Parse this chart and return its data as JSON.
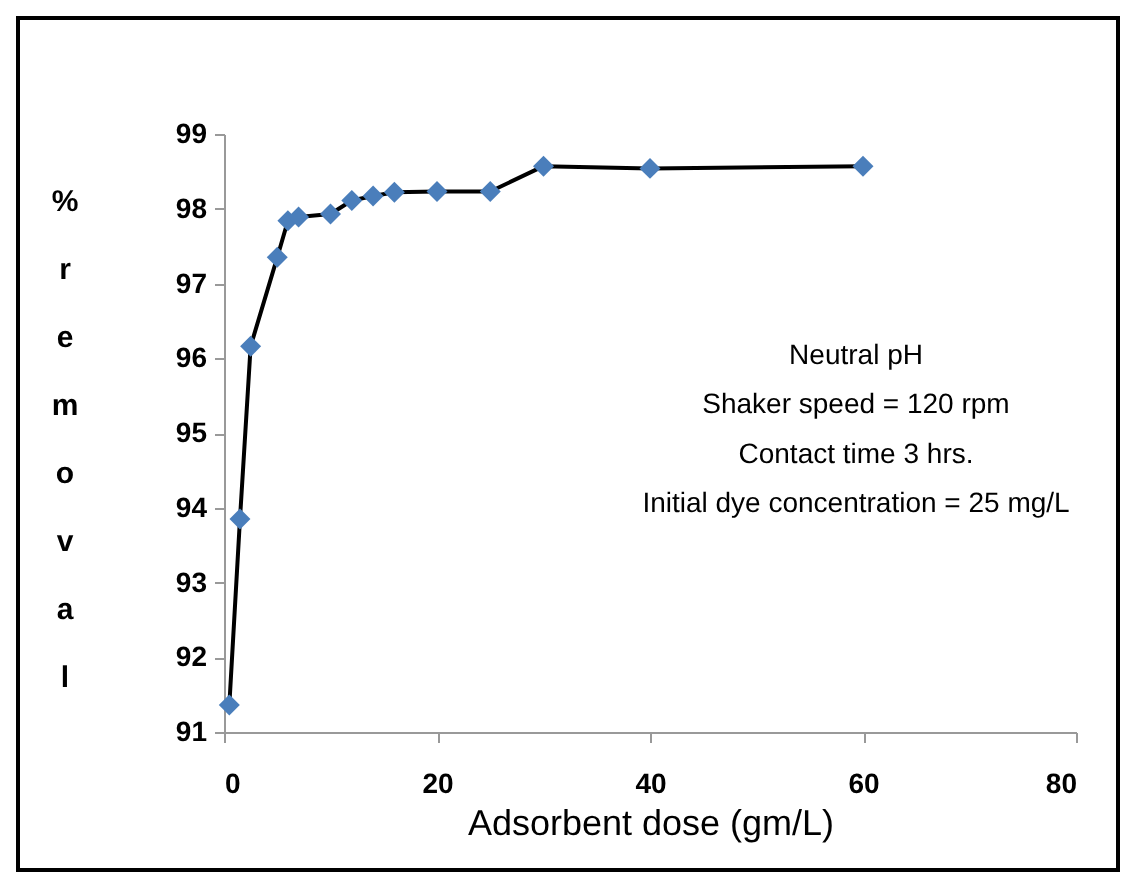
{
  "chart_data": {
    "type": "line",
    "xlabel": "Adsorbent dose (gm/L)",
    "ylabel": "% removal",
    "x": [
      0.5,
      1.5,
      2.5,
      5,
      6,
      7,
      10,
      12,
      14,
      16,
      20,
      25,
      30,
      40,
      60
    ],
    "series": [
      {
        "color": "#4a7ebb",
        "values": [
          91.36,
          93.85,
          96.16,
          97.35,
          97.84,
          97.89,
          97.93,
          98.11,
          98.17,
          98.22,
          98.23,
          98.23,
          98.57,
          98.54,
          98.57
        ]
      }
    ],
    "xlim": [
      0,
      80
    ],
    "xticks": [
      0,
      20,
      40,
      60,
      80
    ],
    "ylim": [
      91,
      99
    ],
    "yticks": [
      91,
      92,
      93,
      94,
      95,
      96,
      97,
      98,
      99
    ],
    "marker": "diamond",
    "grid": false,
    "annotations": [
      "Neutral pH",
      "Shaker speed = 120 rpm",
      "Contact time  3 hrs.",
      "Initial  dye concentration  = 25 mg/L"
    ]
  }
}
